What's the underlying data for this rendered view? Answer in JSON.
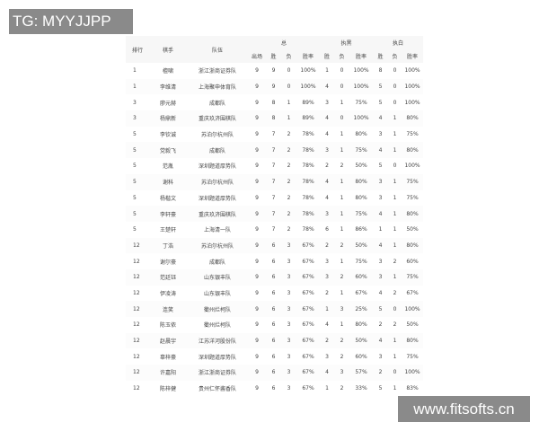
{
  "watermarks": {
    "top": "TG: MYYJJPP",
    "bottom": "www.fitsofts.cn"
  },
  "headers": {
    "rank": "排行",
    "player": "棋手",
    "team": "队伍",
    "total": "总",
    "black": "执黑",
    "white": "执白",
    "games": "出场",
    "win": "胜",
    "loss": "负",
    "rate": "胜率"
  },
  "rows": [
    [
      "1",
      "檀啸",
      "浙江浙商证券队",
      "9",
      "9",
      "0",
      "100%",
      "1",
      "0",
      "100%",
      "8",
      "0",
      "100%"
    ],
    [
      "1",
      "李维清",
      "上海聚申体育队",
      "9",
      "9",
      "0",
      "100%",
      "4",
      "0",
      "100%",
      "5",
      "0",
      "100%"
    ],
    [
      "3",
      "廖元赫",
      "成都队",
      "9",
      "8",
      "1",
      "89%",
      "3",
      "1",
      "75%",
      "5",
      "0",
      "100%"
    ],
    [
      "3",
      "杨鼎新",
      "重庆玖济围棋队",
      "9",
      "8",
      "1",
      "89%",
      "4",
      "0",
      "100%",
      "4",
      "1",
      "80%"
    ],
    [
      "5",
      "李钦诚",
      "苏泊尔杭州队",
      "9",
      "7",
      "2",
      "78%",
      "4",
      "1",
      "80%",
      "3",
      "1",
      "75%"
    ],
    [
      "5",
      "党毅飞",
      "成都队",
      "9",
      "7",
      "2",
      "78%",
      "3",
      "1",
      "75%",
      "4",
      "1",
      "80%"
    ],
    [
      "5",
      "范胤",
      "深圳题道厚势队",
      "9",
      "7",
      "2",
      "78%",
      "2",
      "2",
      "50%",
      "5",
      "0",
      "100%"
    ],
    [
      "5",
      "谢科",
      "苏泊尔杭州队",
      "9",
      "7",
      "2",
      "78%",
      "4",
      "1",
      "80%",
      "3",
      "1",
      "75%"
    ],
    [
      "5",
      "杨楷文",
      "深圳题道厚势队",
      "9",
      "7",
      "2",
      "78%",
      "4",
      "1",
      "80%",
      "3",
      "1",
      "75%"
    ],
    [
      "5",
      "李轩豪",
      "重庆玖济围棋队",
      "9",
      "7",
      "2",
      "78%",
      "3",
      "1",
      "75%",
      "4",
      "1",
      "80%"
    ],
    [
      "5",
      "王楚轩",
      "上海清一队",
      "9",
      "7",
      "2",
      "78%",
      "6",
      "1",
      "86%",
      "1",
      "1",
      "50%"
    ],
    [
      "12",
      "丁浩",
      "苏泊尔杭州队",
      "9",
      "6",
      "3",
      "67%",
      "2",
      "2",
      "50%",
      "4",
      "1",
      "80%"
    ],
    [
      "12",
      "谢尔豪",
      "成都队",
      "9",
      "6",
      "3",
      "67%",
      "3",
      "1",
      "75%",
      "3",
      "2",
      "60%"
    ],
    [
      "12",
      "范廷钰",
      "山东银丰队",
      "9",
      "6",
      "3",
      "67%",
      "3",
      "2",
      "60%",
      "3",
      "1",
      "75%"
    ],
    [
      "12",
      "伊凌涛",
      "山东银丰队",
      "9",
      "6",
      "3",
      "67%",
      "2",
      "1",
      "67%",
      "4",
      "2",
      "67%"
    ],
    [
      "12",
      "连笑",
      "衢州烂柯队",
      "9",
      "6",
      "3",
      "67%",
      "1",
      "3",
      "25%",
      "5",
      "0",
      "100%"
    ],
    [
      "12",
      "陈玉侬",
      "衢州烂柯队",
      "9",
      "6",
      "3",
      "67%",
      "4",
      "1",
      "80%",
      "2",
      "2",
      "50%"
    ],
    [
      "12",
      "赵晨宇",
      "江苏洋河股份队",
      "9",
      "6",
      "3",
      "67%",
      "2",
      "2",
      "50%",
      "4",
      "1",
      "80%"
    ],
    [
      "12",
      "辜梓豪",
      "深圳题道厚势队",
      "9",
      "6",
      "3",
      "67%",
      "3",
      "2",
      "60%",
      "3",
      "1",
      "75%"
    ],
    [
      "12",
      "许嘉阳",
      "浙江浙商证券队",
      "9",
      "6",
      "3",
      "67%",
      "4",
      "3",
      "57%",
      "2",
      "0",
      "100%"
    ],
    [
      "12",
      "陈梓健",
      "贵州仁怀酱香队",
      "9",
      "6",
      "3",
      "67%",
      "1",
      "2",
      "33%",
      "5",
      "1",
      "83%"
    ]
  ]
}
